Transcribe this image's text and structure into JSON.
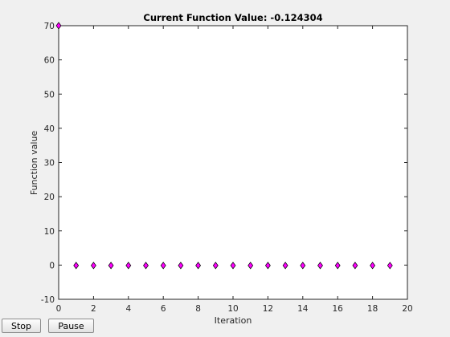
{
  "chart_data": {
    "type": "scatter",
    "title": "Current Function Value: -0.124304",
    "xlabel": "Iteration",
    "ylabel": "Function value",
    "xlim": [
      0,
      20
    ],
    "ylim": [
      -10,
      70
    ],
    "xticks": [
      0,
      2,
      4,
      6,
      8,
      10,
      12,
      14,
      16,
      18,
      20
    ],
    "yticks": [
      -10,
      0,
      10,
      20,
      30,
      40,
      50,
      60,
      70
    ],
    "grid": false,
    "marker": "diamond",
    "marker_color": "#ff00ff",
    "x": [
      0,
      1,
      2,
      3,
      4,
      5,
      6,
      7,
      8,
      9,
      10,
      11,
      12,
      13,
      14,
      15,
      16,
      17,
      18,
      19
    ],
    "y": [
      70,
      -0.12,
      -0.12,
      -0.12,
      -0.12,
      -0.12,
      -0.12,
      -0.12,
      -0.12,
      -0.12,
      -0.12,
      -0.12,
      -0.12,
      -0.12,
      -0.12,
      -0.12,
      -0.12,
      -0.12,
      -0.12,
      -0.124304
    ]
  },
  "controls": {
    "stop_label": "Stop",
    "pause_label": "Pause"
  }
}
